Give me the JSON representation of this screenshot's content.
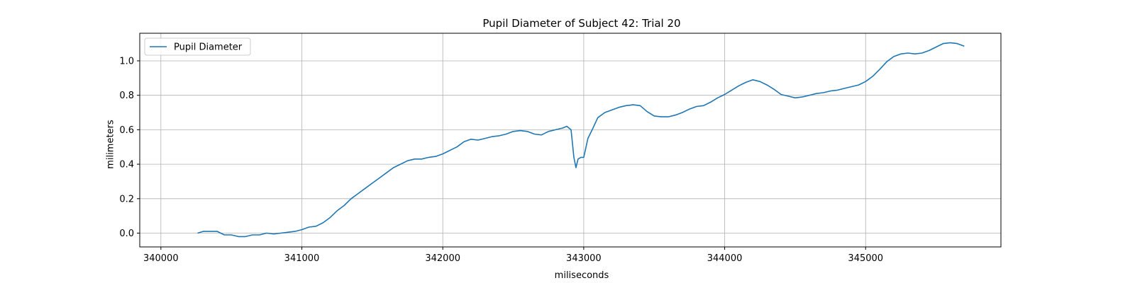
{
  "chart_data": {
    "type": "line",
    "title": "Pupil Diameter of Subject 42: Trial 20",
    "xlabel": "miliseconds",
    "ylabel": "milimeters",
    "xlim": [
      339850,
      345960
    ],
    "ylim": [
      -0.08,
      1.16
    ],
    "xticks": [
      340000,
      341000,
      342000,
      343000,
      344000,
      345000
    ],
    "xtick_labels": [
      "340000",
      "341000",
      "342000",
      "343000",
      "344000",
      "345000"
    ],
    "yticks": [
      0.0,
      0.2,
      0.4,
      0.6,
      0.8,
      1.0
    ],
    "ytick_labels": [
      "0.0",
      "0.2",
      "0.4",
      "0.6",
      "0.8",
      "1.0"
    ],
    "grid": true,
    "legend": {
      "placement": "top-left",
      "entries": [
        "Pupil Diameter"
      ]
    },
    "series": [
      {
        "name": "Pupil Diameter",
        "color": "#1f77b4",
        "x": [
          340260,
          340300,
          340330,
          340370,
          340400,
          340450,
          340500,
          340550,
          340600,
          340650,
          340700,
          340750,
          340800,
          340850,
          340900,
          340950,
          341000,
          341050,
          341100,
          341150,
          341200,
          341250,
          341300,
          341350,
          341400,
          341450,
          341500,
          341550,
          341600,
          341650,
          341700,
          341750,
          341800,
          341850,
          341900,
          341950,
          342000,
          342050,
          342100,
          342150,
          342200,
          342250,
          342300,
          342350,
          342400,
          342450,
          342500,
          342550,
          342600,
          342650,
          342700,
          342750,
          342800,
          342850,
          342880,
          342910,
          342930,
          342945,
          342960,
          342980,
          343000,
          343030,
          343060,
          343100,
          343150,
          343200,
          343250,
          343300,
          343350,
          343400,
          343450,
          343500,
          343550,
          343600,
          343650,
          343700,
          343750,
          343800,
          343850,
          343900,
          343950,
          344000,
          344050,
          344100,
          344150,
          344200,
          344250,
          344300,
          344350,
          344400,
          344450,
          344500,
          344550,
          344600,
          344650,
          344700,
          344750,
          344800,
          344850,
          344900,
          344950,
          345000,
          345050,
          345100,
          345150,
          345200,
          345250,
          345300,
          345350,
          345400,
          345450,
          345500,
          345550,
          345600,
          345650,
          345700
        ],
        "y": [
          0.0,
          0.01,
          0.01,
          0.01,
          0.01,
          -0.01,
          -0.01,
          -0.02,
          -0.02,
          -0.01,
          -0.01,
          0.0,
          -0.005,
          0.0,
          0.005,
          0.01,
          0.02,
          0.035,
          0.04,
          0.06,
          0.09,
          0.13,
          0.16,
          0.2,
          0.23,
          0.26,
          0.29,
          0.32,
          0.35,
          0.38,
          0.4,
          0.42,
          0.43,
          0.43,
          0.44,
          0.445,
          0.46,
          0.48,
          0.5,
          0.53,
          0.545,
          0.54,
          0.55,
          0.56,
          0.565,
          0.575,
          0.59,
          0.595,
          0.59,
          0.575,
          0.57,
          0.59,
          0.6,
          0.61,
          0.62,
          0.6,
          0.44,
          0.38,
          0.43,
          0.44,
          0.44,
          0.55,
          0.6,
          0.67,
          0.7,
          0.715,
          0.73,
          0.74,
          0.745,
          0.74,
          0.705,
          0.68,
          0.675,
          0.675,
          0.685,
          0.7,
          0.72,
          0.735,
          0.74,
          0.76,
          0.785,
          0.805,
          0.83,
          0.855,
          0.875,
          0.89,
          0.88,
          0.86,
          0.835,
          0.805,
          0.795,
          0.785,
          0.79,
          0.8,
          0.81,
          0.815,
          0.825,
          0.83,
          0.84,
          0.85,
          0.86,
          0.88,
          0.91,
          0.95,
          0.995,
          1.025,
          1.04,
          1.045,
          1.04,
          1.045,
          1.06,
          1.08,
          1.1,
          1.105,
          1.1,
          1.085
        ]
      }
    ]
  }
}
